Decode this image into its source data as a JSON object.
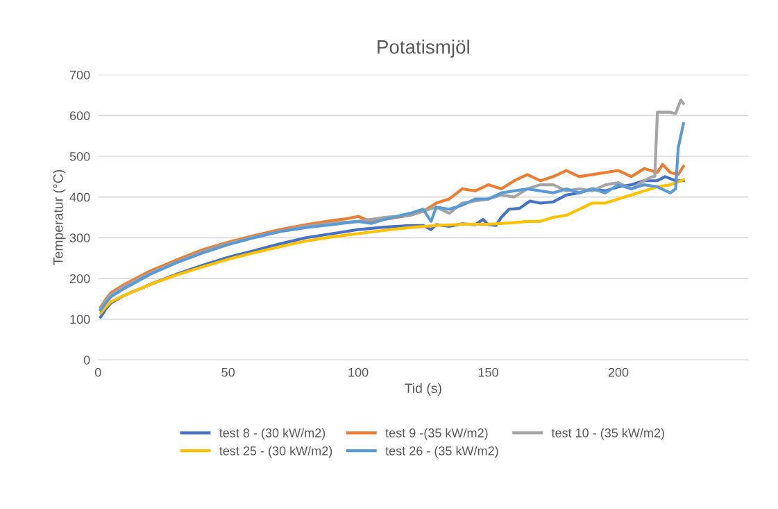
{
  "chart_data": {
    "type": "line",
    "title": "Potatismjöl",
    "xlabel": "Tid (s)",
    "ylabel": "Temperatur (°C)",
    "xlim": [
      0,
      250
    ],
    "xticks": [
      0,
      50,
      100,
      150,
      200
    ],
    "ylim": [
      0,
      700
    ],
    "yticks": [
      0,
      100,
      200,
      300,
      400,
      500,
      600,
      700
    ],
    "grid": "y",
    "legend": "bottom",
    "marker": "none",
    "line_style": "solid",
    "series": [
      {
        "name": "test 8 - (30 kW/m2)",
        "color": "#4472c4",
        "x": [
          1,
          3,
          5,
          10,
          20,
          30,
          40,
          50,
          60,
          70,
          80,
          90,
          100,
          110,
          120,
          125,
          128,
          130,
          135,
          140,
          145,
          148,
          150,
          153,
          155,
          158,
          162,
          166,
          170,
          175,
          180,
          185,
          190,
          195,
          200,
          205,
          210,
          215,
          218,
          222,
          225
        ],
        "values": [
          105,
          125,
          140,
          158,
          185,
          210,
          232,
          252,
          268,
          285,
          300,
          310,
          320,
          326,
          330,
          330,
          320,
          332,
          328,
          334,
          332,
          345,
          332,
          330,
          350,
          370,
          372,
          390,
          385,
          388,
          405,
          410,
          420,
          415,
          425,
          430,
          440,
          440,
          450,
          440,
          440
        ]
      },
      {
        "name": "test 9 -(35 kW/m2)",
        "color": "#ed7d31",
        "x": [
          1,
          3,
          5,
          10,
          20,
          30,
          40,
          50,
          60,
          70,
          80,
          90,
          95,
          100,
          105,
          110,
          120,
          125,
          130,
          135,
          140,
          145,
          150,
          155,
          160,
          165,
          170,
          175,
          180,
          185,
          190,
          195,
          200,
          205,
          210,
          215,
          217,
          220,
          223,
          225
        ],
        "values": [
          129,
          149,
          165,
          185,
          218,
          245,
          270,
          289,
          305,
          320,
          332,
          342,
          346,
          352,
          340,
          345,
          355,
          365,
          385,
          395,
          420,
          415,
          430,
          420,
          440,
          455,
          440,
          450,
          465,
          450,
          455,
          460,
          465,
          450,
          470,
          460,
          480,
          460,
          455,
          475
        ]
      },
      {
        "name": "test 10 - (35 kW/m2)",
        "color": "#a5a5a5",
        "x": [
          1,
          3,
          5,
          10,
          20,
          30,
          40,
          50,
          60,
          70,
          80,
          90,
          100,
          110,
          120,
          130,
          135,
          140,
          145,
          150,
          155,
          160,
          165,
          170,
          175,
          180,
          185,
          190,
          195,
          200,
          205,
          210,
          213,
          214,
          215,
          220,
          222,
          224,
          225
        ],
        "values": [
          125,
          145,
          160,
          180,
          213,
          240,
          265,
          285,
          302,
          316,
          328,
          336,
          340,
          350,
          355,
          375,
          360,
          385,
          390,
          395,
          405,
          400,
          420,
          430,
          430,
          415,
          420,
          415,
          430,
          435,
          420,
          440,
          450,
          450,
          608,
          608,
          605,
          638,
          630
        ]
      },
      {
        "name": "test 25 - (30 kW/m2)",
        "color": "#ffc000",
        "x": [
          1,
          3,
          5,
          10,
          20,
          30,
          40,
          50,
          60,
          70,
          80,
          90,
          100,
          110,
          120,
          130,
          140,
          150,
          160,
          165,
          170,
          175,
          180,
          185,
          190,
          195,
          200,
          205,
          210,
          215,
          220,
          225
        ],
        "values": [
          115,
          130,
          143,
          158,
          185,
          208,
          228,
          247,
          263,
          278,
          292,
          302,
          310,
          318,
          325,
          330,
          333,
          333,
          337,
          340,
          340,
          350,
          355,
          370,
          385,
          385,
          395,
          405,
          415,
          425,
          430,
          442
        ]
      },
      {
        "name": "test 26 - (35 kW/m2)",
        "color": "#5b9bd5",
        "x": [
          1,
          3,
          5,
          10,
          20,
          30,
          40,
          50,
          60,
          70,
          80,
          90,
          100,
          105,
          110,
          120,
          125,
          128,
          130,
          135,
          140,
          145,
          150,
          155,
          160,
          165,
          170,
          175,
          180,
          185,
          190,
          195,
          200,
          205,
          210,
          215,
          220,
          222,
          223,
          225
        ],
        "values": [
          122,
          140,
          155,
          175,
          210,
          238,
          262,
          283,
          300,
          315,
          325,
          332,
          340,
          335,
          345,
          360,
          370,
          340,
          375,
          370,
          380,
          395,
          395,
          410,
          415,
          420,
          415,
          410,
          420,
          410,
          420,
          410,
          430,
          420,
          430,
          425,
          410,
          420,
          520,
          580
        ]
      }
    ]
  }
}
